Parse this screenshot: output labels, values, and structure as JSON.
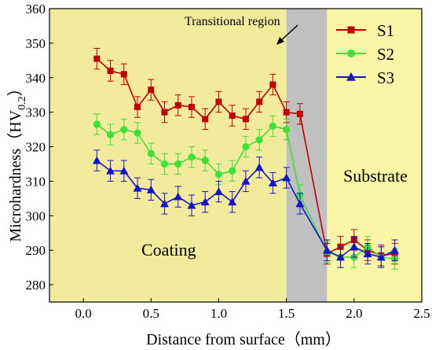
{
  "chart_data": {
    "type": "line",
    "xlabel": "Distance from surface（mm）",
    "ylabel_main": "Microhardness（HV",
    "ylabel_sub": "0.2",
    "ylabel_end": "）",
    "xlim": [
      -0.25,
      2.5
    ],
    "ylim": [
      275,
      360
    ],
    "x_ticks": [
      "0.0",
      "0.5",
      "1.0",
      "1.5",
      "2.0",
      "2.5"
    ],
    "x_tick_values": [
      0.0,
      0.5,
      1.0,
      1.5,
      2.0,
      2.5
    ],
    "y_ticks": [
      "280",
      "290",
      "300",
      "310",
      "320",
      "330",
      "340",
      "350",
      "360"
    ],
    "y_tick_values": [
      280,
      290,
      300,
      310,
      320,
      330,
      340,
      350,
      360
    ],
    "regions": {
      "coating": {
        "label": "Coating",
        "x_range": [
          -0.25,
          1.5
        ],
        "color": "#f3eb9c"
      },
      "transitional": {
        "label": "Transitional region",
        "x_range": [
          1.5,
          1.8
        ],
        "color": "#c0c0c0"
      },
      "substrate": {
        "label": "Substrate",
        "x_range": [
          1.8,
          2.5
        ],
        "color": "#fbf5a6"
      }
    },
    "x": [
      0.1,
      0.2,
      0.3,
      0.4,
      0.5,
      0.6,
      0.7,
      0.8,
      0.9,
      1.0,
      1.1,
      1.2,
      1.3,
      1.4,
      1.5,
      1.6,
      1.8,
      1.9,
      2.0,
      2.1,
      2.2,
      2.3
    ],
    "series": [
      {
        "name": "S1",
        "color": "#c00000",
        "marker": "square",
        "values": [
          345.5,
          342,
          341,
          331.5,
          336.5,
          330,
          332,
          331.5,
          328,
          333,
          329,
          328,
          333,
          338,
          330,
          329.5,
          289,
          291,
          293,
          290,
          288.5,
          289
        ],
        "errors": [
          3,
          3,
          3,
          3,
          3,
          3,
          3,
          3,
          3,
          3,
          3,
          3,
          3,
          3,
          3,
          3,
          3,
          3,
          3,
          3,
          3,
          3
        ]
      },
      {
        "name": "S2",
        "color": "#3ee03a",
        "marker": "circle",
        "values": [
          326.5,
          323.5,
          325,
          324,
          318,
          315,
          315,
          317,
          316,
          312,
          313,
          320,
          322,
          326,
          325,
          306,
          289.5,
          288,
          288,
          291,
          288,
          287.5
        ],
        "errors": [
          3,
          3,
          3,
          3,
          3,
          3,
          3,
          3,
          3,
          3,
          3,
          3,
          3,
          3,
          3,
          3,
          3,
          3,
          3,
          3,
          3,
          3
        ]
      },
      {
        "name": "S3",
        "color": "#1414c8",
        "marker": "triangle",
        "values": [
          316,
          313,
          313,
          308,
          307.5,
          303.5,
          305.5,
          303,
          304,
          307,
          304,
          310,
          314,
          309.5,
          311,
          303.5,
          290,
          288,
          291,
          289,
          288,
          290
        ],
        "errors": [
          3,
          3,
          3,
          3,
          3,
          3,
          3,
          3,
          3,
          3,
          3,
          3,
          3,
          3,
          3,
          3,
          3,
          3,
          3,
          3,
          3,
          3
        ]
      }
    ],
    "legend": {
      "placement": "top-right",
      "entries": [
        "S1",
        "S2",
        "S3"
      ]
    },
    "grid": false
  }
}
